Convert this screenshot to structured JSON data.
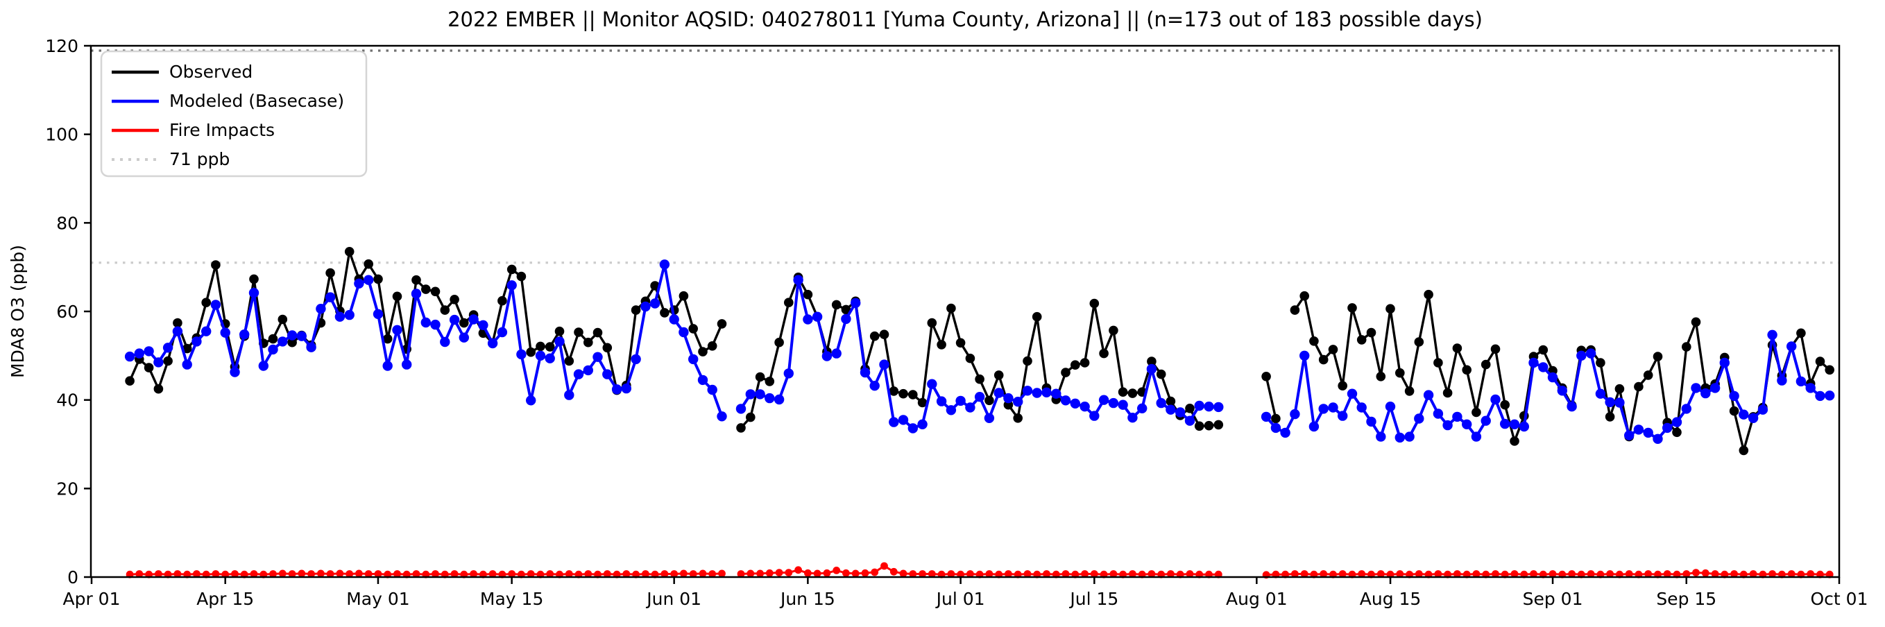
{
  "header": {
    "title": "2022 EMBER || Monitor AQSID: 040278011 [Yuma County, Arizona] || (n=173 out of 183 possible days)"
  },
  "axes": {
    "y_label": "MDA8 O3 (ppb)",
    "y_ticks": [
      0,
      20,
      40,
      60,
      80,
      100,
      120
    ],
    "x_tick_labels": [
      "Apr 01",
      "Apr 15",
      "May 01",
      "May 15",
      "Jun 01",
      "Jun 15",
      "Jul 01",
      "Jul 15",
      "Aug 01",
      "Aug 15",
      "Sep 01",
      "Sep 15",
      "Oct 01"
    ]
  },
  "legend": {
    "items": [
      {
        "label": "Observed",
        "color": "#000000",
        "style": "solid"
      },
      {
        "label": "Modeled (Basecase)",
        "color": "#0000ff",
        "style": "solid"
      },
      {
        "label": "Fire Impacts",
        "color": "#ff0000",
        "style": "solid"
      },
      {
        "label": "71 ppb",
        "color": "#cccccc",
        "style": "dotted"
      }
    ]
  },
  "chart_data": {
    "type": "line",
    "title": "2022 EMBER || Monitor AQSID: 040278011 [Yuma County, Arizona] || (n=173 out of 183 possible days)",
    "xlabel": "",
    "ylabel": "MDA8 O3 (ppb)",
    "ylim": [
      0,
      120
    ],
    "grid": false,
    "legend_position": "upper-left",
    "x_ticks": [
      {
        "label": "Apr 01",
        "day": 0
      },
      {
        "label": "Apr 15",
        "day": 14
      },
      {
        "label": "May 01",
        "day": 30
      },
      {
        "label": "May 15",
        "day": 44
      },
      {
        "label": "Jun 01",
        "day": 61
      },
      {
        "label": "Jun 15",
        "day": 75
      },
      {
        "label": "Jul 01",
        "day": 91
      },
      {
        "label": "Jul 15",
        "day": 105
      },
      {
        "label": "Aug 01",
        "day": 122
      },
      {
        "label": "Aug 15",
        "day": 136
      },
      {
        "label": "Sep 01",
        "day": 153
      },
      {
        "label": "Sep 15",
        "day": 167
      },
      {
        "label": "Oct 01",
        "day": 183
      }
    ],
    "y_ticks": [
      0,
      20,
      40,
      60,
      80,
      100,
      120
    ],
    "thresholds": [
      {
        "label": "71 ppb",
        "value": 71,
        "color": "#cccccc"
      },
      {
        "label": "",
        "value": 118.9,
        "color": "#707070"
      }
    ],
    "x_axis_note": "day index 0 = Apr 01, 2022; series start at day 4 (Apr 05); nulls = missing days",
    "first_day": 4,
    "series": [
      {
        "name": "Observed",
        "color": "#000000",
        "values": [
          44.3,
          49.2,
          47.3,
          42.5,
          48.8,
          57.4,
          51.6,
          54,
          62,
          70.5,
          57.2,
          47.5,
          54.4,
          67.3,
          52.8,
          53.8,
          58.2,
          53,
          54.6,
          52.4,
          57.4,
          68.7,
          60.1,
          73.5,
          67.3,
          70.7,
          67.3,
          53.8,
          63.4,
          51.5,
          67.1,
          65,
          64.5,
          60.3,
          62.7,
          57.4,
          59.2,
          55.1,
          52.9,
          62.4,
          69.5,
          67.9,
          50.8,
          52.1,
          52,
          55.5,
          48.8,
          55.3,
          53,
          55.2,
          51.8,
          42.2,
          43.3,
          60.3,
          62.3,
          65.8,
          59.7,
          60.3,
          63.5,
          56.1,
          50.9,
          52.2,
          57.2,
          null,
          33.7,
          36.1,
          45.2,
          44.2,
          53,
          62,
          67.7,
          63.8,
          58.8,
          50.9,
          61.5,
          60.4,
          62.3,
          47,
          54.4,
          54.8,
          42,
          41.4,
          41.2,
          39.4,
          57.4,
          52.5,
          60.7,
          52.9,
          49.4,
          44.7,
          39.9,
          45.6,
          38.9,
          35.9,
          48.8,
          58.8,
          42.7,
          40.1,
          46.2,
          47.9,
          48.4,
          61.8,
          50.5,
          55.7,
          41.8,
          41.5,
          41.8,
          48.7,
          45.8,
          39.7,
          36.5,
          38.1,
          34.1,
          34.2,
          34.4,
          null,
          null,
          null,
          null,
          45.3,
          35.8,
          null,
          60.3,
          63.5,
          53.3,
          49.1,
          51.4,
          43.2,
          60.8,
          53.6,
          55.2,
          45.3,
          60.6,
          46.1,
          42,
          53.1,
          63.8,
          48.4,
          41.6,
          51.7,
          46.8,
          37.2,
          48,
          51.5,
          38.9,
          30.7,
          36.4,
          49.8,
          51.3,
          46.6,
          42.7,
          38.8,
          51.2,
          51.3,
          48.4,
          36.2,
          42.5,
          31.7,
          43,
          45.6,
          49.8,
          34.9,
          32.7,
          52,
          57.6,
          42.7,
          43.6,
          49.6,
          37.5,
          28.6,
          36.2,
          38.3,
          52.4,
          45.5,
          52.1,
          55.1,
          43.7,
          48.7,
          46.8
        ]
      },
      {
        "name": "Modeled (Basecase)",
        "color": "#0000ff",
        "values": [
          49.8,
          50.5,
          51,
          48.5,
          51.8,
          55.5,
          48,
          53.2,
          55.5,
          61.5,
          55.2,
          46.3,
          54.8,
          64.2,
          47.7,
          51.4,
          53.2,
          54.6,
          54.4,
          51.9,
          60.6,
          63.2,
          58.8,
          59.2,
          66.3,
          67.1,
          59.4,
          47.7,
          55.8,
          48,
          64,
          57.5,
          57,
          53.1,
          58.1,
          54.1,
          58.2,
          56.9,
          52.8,
          55.3,
          65.9,
          50.3,
          39.9,
          50,
          49.4,
          53.2,
          41.1,
          45.8,
          46.7,
          49.7,
          45.8,
          42.4,
          42.6,
          49.2,
          61.1,
          61.8,
          70.6,
          58.2,
          55.3,
          49.2,
          44.5,
          42.3,
          36.3,
          null,
          38,
          41.3,
          41.3,
          40.4,
          40.1,
          46,
          67.1,
          58.2,
          58.8,
          49.9,
          50.5,
          58.3,
          61.9,
          46.2,
          43.2,
          48,
          35,
          35.5,
          33.6,
          34.5,
          43.6,
          39.7,
          37.7,
          39.8,
          38.3,
          40.7,
          35.9,
          41.6,
          40.4,
          39.6,
          42.1,
          41.6,
          41.7,
          41.4,
          39.9,
          39.2,
          38.5,
          36.4,
          40,
          39.3,
          38.9,
          36,
          38.1,
          47,
          39.3,
          37.8,
          37.2,
          35.3,
          38.7,
          38.5,
          38.4,
          null,
          null,
          null,
          null,
          36.2,
          33.7,
          32.6,
          36.8,
          50,
          34,
          38,
          38.3,
          36.4,
          41.4,
          38.3,
          35.1,
          31.7,
          38.5,
          31.5,
          31.7,
          35.8,
          41.1,
          36.9,
          34.3,
          36.2,
          34.5,
          31.7,
          35.3,
          40.1,
          34.6,
          34.5,
          34,
          48.4,
          47.4,
          45.1,
          42.1,
          38.5,
          50,
          50.5,
          41.4,
          39.5,
          39.4,
          32,
          33.3,
          32.6,
          31.2,
          33.7,
          35,
          38,
          42.7,
          41.5,
          42.7,
          48.4,
          40.9,
          36.7,
          35.9,
          37.8,
          54.7,
          44.4,
          52.1,
          44.2,
          42.7,
          40.9,
          41
        ]
      },
      {
        "name": "Fire Impacts",
        "color": "#ff0000",
        "values": [
          0.6,
          0.7,
          0.6,
          0.7,
          0.6,
          0.7,
          0.6,
          0.7,
          0.6,
          0.7,
          0.6,
          0.7,
          0.6,
          0.7,
          0.6,
          0.7,
          0.8,
          0.7,
          0.8,
          0.7,
          0.8,
          0.7,
          0.8,
          0.7,
          0.8,
          0.7,
          0.7,
          0.6,
          0.7,
          0.6,
          0.7,
          0.6,
          0.7,
          0.6,
          0.7,
          0.6,
          0.7,
          0.6,
          0.7,
          0.6,
          0.7,
          0.6,
          0.7,
          0.6,
          0.7,
          0.6,
          0.7,
          0.6,
          0.7,
          0.6,
          0.7,
          0.6,
          0.7,
          0.6,
          0.7,
          0.6,
          0.7,
          0.7,
          0.8,
          0.7,
          0.8,
          0.7,
          0.8,
          null,
          0.7,
          0.8,
          0.8,
          0.9,
          1,
          1,
          1.6,
          0.9,
          0.8,
          0.9,
          1.5,
          0.9,
          0.8,
          0.9,
          1.1,
          2.5,
          1.2,
          0.8,
          0.7,
          0.7,
          0.7,
          0.6,
          0.7,
          0.6,
          0.7,
          0.6,
          0.7,
          0.6,
          0.7,
          0.6,
          0.7,
          0.6,
          0.7,
          0.6,
          0.7,
          0.6,
          0.7,
          0.7,
          0.6,
          0.7,
          0.6,
          0.7,
          0.6,
          0.7,
          0.6,
          0.7,
          0.6,
          0.7,
          0.6,
          0.6,
          0.6,
          null,
          null,
          null,
          null,
          0.5,
          0.6,
          0.6,
          0.7,
          0.7,
          0.6,
          0.7,
          0.6,
          0.7,
          0.6,
          0.7,
          0.6,
          0.7,
          0.6,
          0.7,
          0.6,
          0.7,
          0.6,
          0.7,
          0.6,
          0.7,
          0.6,
          0.7,
          0.6,
          0.7,
          0.6,
          0.7,
          0.6,
          0.7,
          0.6,
          0.7,
          0.6,
          0.7,
          0.6,
          0.7,
          0.6,
          0.7,
          0.6,
          0.7,
          0.6,
          0.7,
          0.6,
          0.7,
          0.6,
          0.7,
          1,
          0.9,
          0.7,
          0.6,
          0.7,
          0.6,
          0.7,
          0.6,
          0.7,
          0.6,
          0.7,
          0.6,
          0.7,
          0.6,
          0.6
        ]
      }
    ]
  }
}
